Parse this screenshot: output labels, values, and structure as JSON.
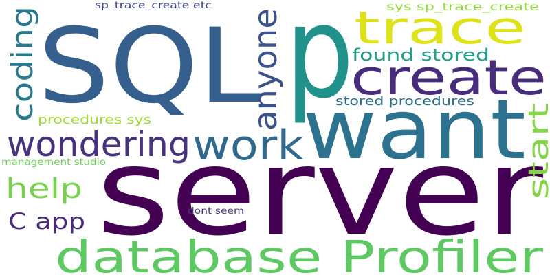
{
  "words": [
    {
      "id": "server",
      "text": "server",
      "color": "#440154"
    },
    {
      "id": "p",
      "text": "p",
      "color": "#21918c"
    },
    {
      "id": "sql",
      "text": "SQL",
      "color": "#355f8d"
    },
    {
      "id": "want",
      "text": "want",
      "color": "#2c728e"
    },
    {
      "id": "create",
      "text": "create",
      "color": "#472d7b"
    },
    {
      "id": "trace",
      "text": "trace",
      "color": "#dde318"
    },
    {
      "id": "database-profiler",
      "text": "database Profiler",
      "color": "#5ec962"
    },
    {
      "id": "work",
      "text": "work",
      "color": "#31688e"
    },
    {
      "id": "wondering",
      "text": "wondering",
      "color": "#46327e"
    },
    {
      "id": "anyone",
      "text": "anyone",
      "color": "#3b528b"
    },
    {
      "id": "coding",
      "text": "coding",
      "color": "#2a788e"
    },
    {
      "id": "help",
      "text": "help",
      "color": "#7ad151"
    },
    {
      "id": "start",
      "text": "start",
      "color": "#86d549"
    },
    {
      "id": "c-app",
      "text": "C app",
      "color": "#482878"
    },
    {
      "id": "found-stored",
      "text": "found stored",
      "color": "#1f9e89"
    },
    {
      "id": "stored-procedures",
      "text": "stored procedures",
      "color": "#2d708e"
    },
    {
      "id": "procedures-sys",
      "text": "procedures sys",
      "color": "#a0da39"
    },
    {
      "id": "sys-sp-trace-create",
      "text": "sys sp_trace_create",
      "color": "#95d840"
    },
    {
      "id": "sp-trace-create-etc",
      "text": "sp_trace_create etc",
      "color": "#414487"
    },
    {
      "id": "management-studio",
      "text": "management studio",
      "color": "#6ccd5a"
    },
    {
      "id": "dont-seem",
      "text": "dont seem",
      "color": "#443983"
    }
  ]
}
